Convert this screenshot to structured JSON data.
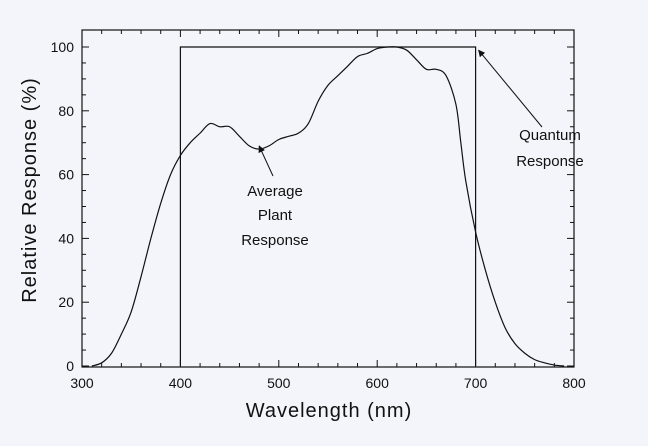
{
  "chart_data": {
    "type": "line",
    "title": "",
    "xlabel": "Wavelength  (nm)",
    "ylabel": "Relative Response  (%)",
    "xlim": [
      300,
      800
    ],
    "ylim": [
      0,
      100
    ],
    "xticks": [
      300,
      400,
      500,
      600,
      700,
      800
    ],
    "yticks": [
      0,
      20,
      40,
      60,
      80,
      100
    ],
    "grid": false,
    "series": [
      {
        "name": "Average Plant Response",
        "x": [
          310,
          320,
          330,
          340,
          350,
          360,
          370,
          380,
          390,
          400,
          410,
          420,
          430,
          440,
          450,
          460,
          470,
          480,
          490,
          500,
          510,
          520,
          530,
          540,
          550,
          560,
          570,
          580,
          590,
          600,
          610,
          620,
          630,
          640,
          650,
          660,
          670,
          680,
          685,
          690,
          700,
          710,
          720,
          730,
          740,
          750,
          760,
          770,
          780,
          790
        ],
        "y": [
          0,
          1,
          4,
          10,
          17,
          28,
          40,
          51,
          60,
          66,
          70,
          73,
          76,
          75,
          75,
          72,
          69,
          68,
          69,
          71,
          72,
          73,
          76,
          83,
          88,
          91,
          94,
          97,
          98,
          99.5,
          100,
          100,
          99,
          96,
          93,
          93,
          91,
          82,
          70,
          58,
          42,
          30,
          20,
          12,
          7,
          4,
          2,
          1,
          0.3,
          0
        ]
      },
      {
        "name": "Quantum Response",
        "x": [
          400,
          400,
          700,
          700
        ],
        "y": [
          0,
          100,
          100,
          0
        ]
      }
    ],
    "annotations": [
      {
        "lines": [
          "Average",
          "Plant",
          "Response"
        ],
        "arrow_to": [
          480,
          69
        ]
      },
      {
        "lines": [
          "Quantum",
          "Response"
        ],
        "arrow_to": [
          703,
          99
        ]
      }
    ]
  }
}
